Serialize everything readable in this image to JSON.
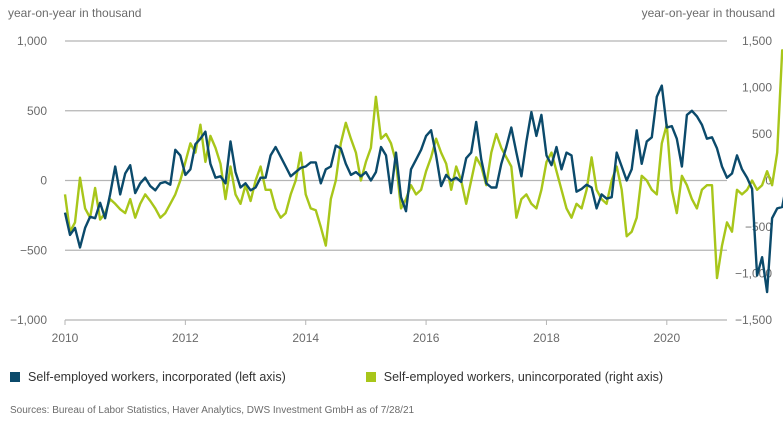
{
  "chart_data": {
    "type": "line",
    "title": "",
    "left_axis_title": "year-on-year in thousand",
    "right_axis_title": "year-on-year in thousand",
    "x_start": "2010-01",
    "x_end": "2020-12",
    "x_frequency": "monthly",
    "xticks": [
      "2010",
      "2012",
      "2014",
      "2016",
      "2018",
      "2020"
    ],
    "xlim": [
      2010,
      2021
    ],
    "ylim_left": [
      -1000,
      1000
    ],
    "yticks_left": [
      1000,
      500,
      0,
      -500,
      -1000
    ],
    "yticks_left_labels": [
      "1,000",
      "500",
      "0",
      "−500",
      "−1,000"
    ],
    "ylim_right": [
      -1500,
      1500
    ],
    "yticks_right": [
      1500,
      1000,
      500,
      0,
      -500,
      -1000,
      -1500
    ],
    "yticks_right_labels": [
      "1,500",
      "1,000",
      "500",
      "0",
      "−500",
      "−1,000",
      "−1,500"
    ],
    "grid": true,
    "legend_position": "bottom",
    "series": [
      {
        "name": "Self-employed workers, incorporated (left axis)",
        "axis": "left",
        "color": "#0b4a6b",
        "values": [
          -230,
          -390,
          -340,
          -480,
          -340,
          -260,
          -270,
          -160,
          -270,
          -100,
          100,
          -100,
          50,
          110,
          -90,
          -20,
          20,
          -40,
          -70,
          -20,
          -10,
          -30,
          220,
          180,
          40,
          80,
          260,
          300,
          350,
          120,
          20,
          30,
          -20,
          280,
          60,
          -50,
          -20,
          -70,
          -50,
          20,
          20,
          180,
          240,
          170,
          100,
          30,
          60,
          90,
          100,
          130,
          130,
          -20,
          80,
          100,
          250,
          230,
          120,
          40,
          60,
          30,
          60,
          0,
          60,
          240,
          180,
          -90,
          200,
          -120,
          -220,
          80,
          150,
          220,
          320,
          360,
          180,
          -40,
          40,
          0,
          20,
          -10,
          160,
          200,
          420,
          150,
          -20,
          -50,
          -50,
          120,
          240,
          380,
          200,
          30,
          280,
          490,
          320,
          470,
          180,
          110,
          240,
          80,
          200,
          180,
          -80,
          -60,
          -30,
          -50,
          -200,
          -100,
          -130,
          -120,
          200,
          100,
          0,
          80,
          360,
          120,
          280,
          310,
          600,
          680,
          380,
          390,
          300,
          100,
          470,
          500,
          460,
          400,
          300,
          310,
          230,
          100,
          20,
          50,
          180,
          80,
          20,
          -60,
          -680,
          -550,
          -800,
          -270,
          -200,
          -190,
          0
        ]
      },
      {
        "name": "Self-employed workers, unincorporated (right axis)",
        "axis": "right",
        "color": "#a8c61a",
        "values": [
          -150,
          -550,
          -450,
          30,
          -300,
          -400,
          -80,
          -420,
          -350,
          -200,
          -250,
          -310,
          -350,
          -200,
          -400,
          -250,
          -150,
          -220,
          -300,
          -400,
          -350,
          -250,
          -150,
          0,
          200,
          400,
          300,
          600,
          200,
          480,
          350,
          180,
          -200,
          150,
          -150,
          -250,
          -50,
          -220,
          0,
          150,
          -100,
          -100,
          -300,
          -400,
          -350,
          -150,
          0,
          300,
          -150,
          -300,
          -320,
          -500,
          -700,
          -200,
          0,
          400,
          620,
          450,
          300,
          0,
          200,
          350,
          900,
          450,
          500,
          400,
          200,
          -300,
          -200,
          -50,
          -150,
          -100,
          100,
          250,
          450,
          300,
          180,
          -100,
          150,
          0,
          -250,
          0,
          250,
          150,
          -50,
          300,
          500,
          350,
          250,
          150,
          -400,
          -200,
          -150,
          -250,
          -300,
          -100,
          200,
          300,
          100,
          -100,
          -300,
          -400,
          -250,
          -300,
          -100,
          250,
          -100,
          -200,
          -250,
          0,
          150,
          -100,
          -600,
          -550,
          -400,
          50,
          0,
          -100,
          -150,
          400,
          600,
          -100,
          -350,
          50,
          -50,
          -200,
          -300,
          -100,
          -50,
          -50,
          -1050,
          -700,
          -450,
          -550,
          -100,
          -150,
          -100,
          0,
          -100,
          -50,
          100,
          -50,
          300,
          1400,
          1350,
          850
        ]
      }
    ]
  },
  "legend": {
    "items": [
      {
        "label": "Self-employed workers, incorporated (left axis)",
        "color": "#0b4a6b"
      },
      {
        "label": "Self-employed workers, unincorporated (right axis)",
        "color": "#a8c61a"
      }
    ]
  },
  "source": "Sources: Bureau of Labor Statistics, Haver Analytics, DWS Investment GmbH as of 7/28/21"
}
